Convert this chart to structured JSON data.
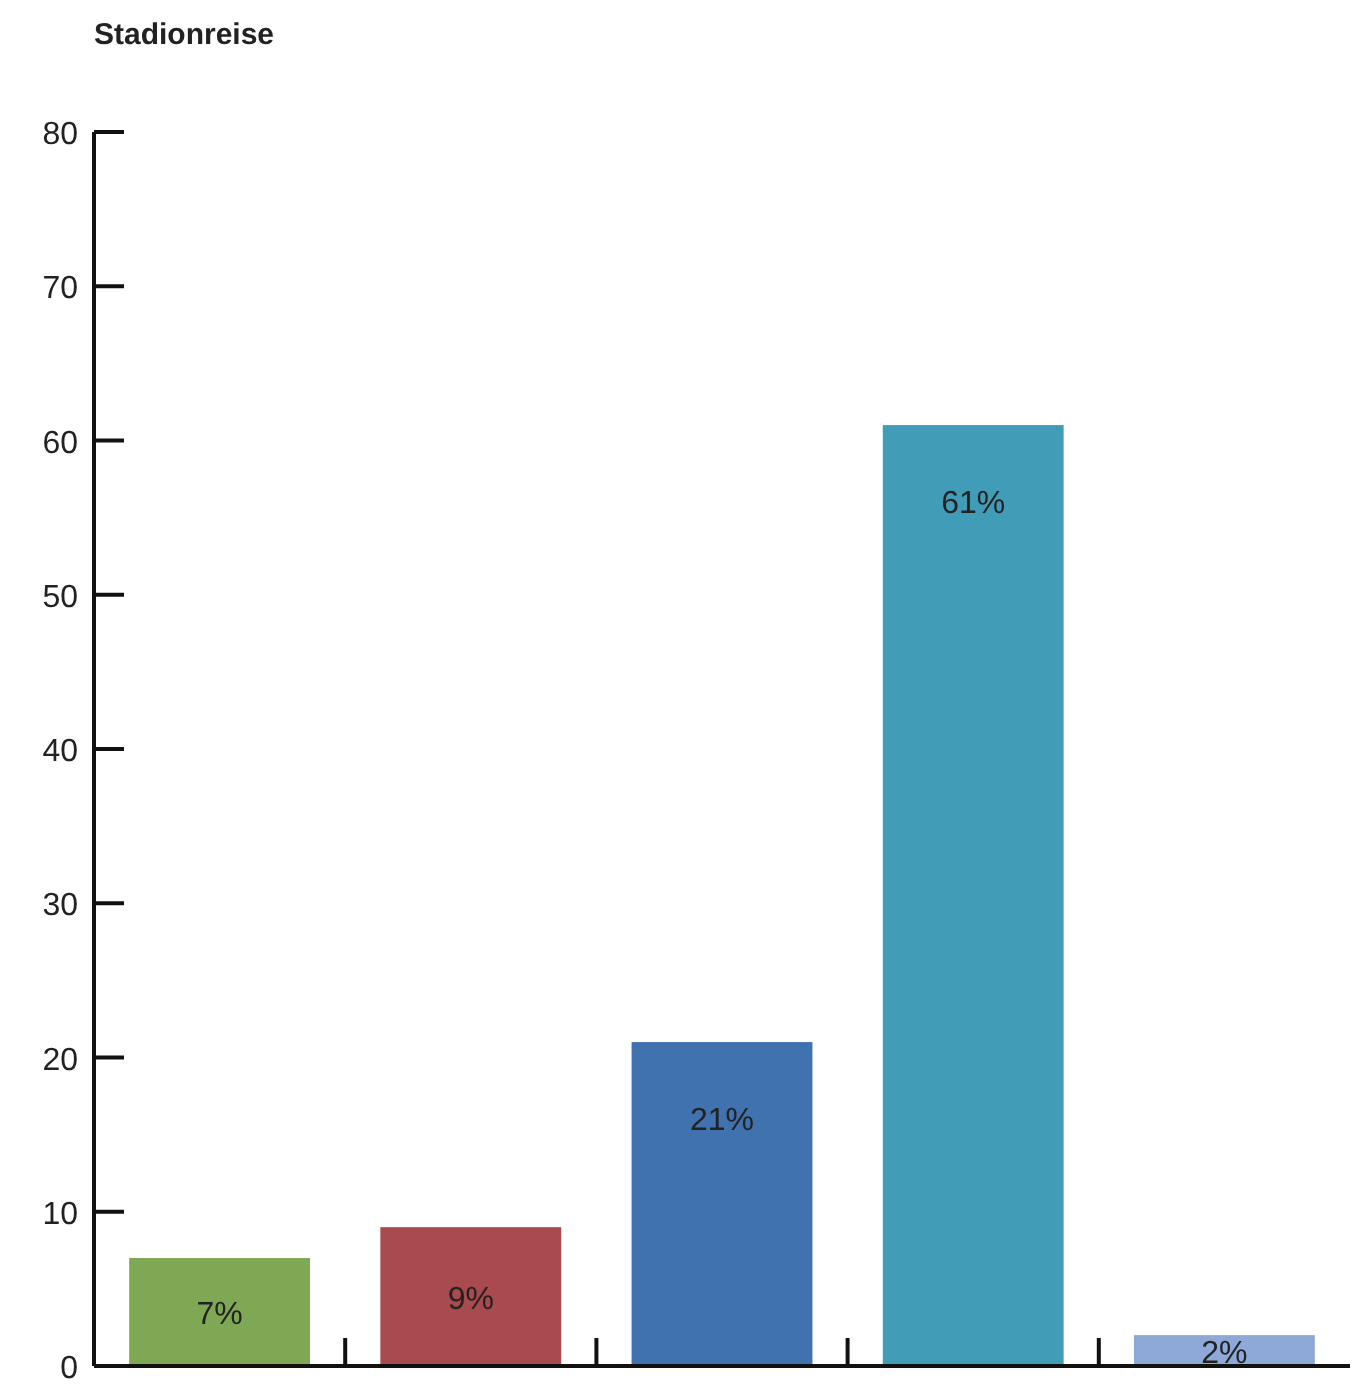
{
  "chart_data": {
    "type": "bar",
    "title": "Stadionreise",
    "categories": [
      null,
      null,
      null,
      null,
      null
    ],
    "values": [
      7,
      9,
      21,
      61,
      2
    ],
    "colors": [
      "#7fa855",
      "#a84a4e",
      "#3f72ae",
      "#419cb8",
      "#8ea8d8"
    ],
    "value_labels": [
      "7%",
      "9%",
      "21%",
      "61%",
      "2%"
    ],
    "ylim": [
      0,
      80
    ],
    "yticks": [
      0,
      10,
      20,
      30,
      40,
      50,
      60,
      70,
      80
    ],
    "grid": false
  }
}
